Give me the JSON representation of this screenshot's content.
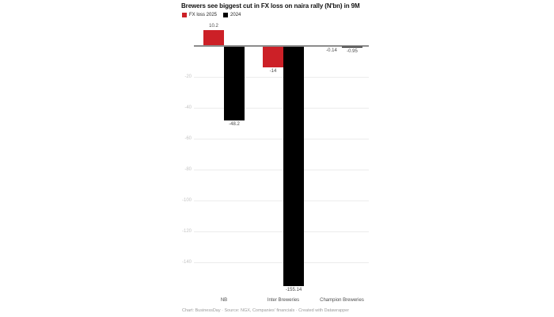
{
  "chart_data": {
    "type": "bar",
    "title": "Brewers see biggest cut in FX loss on naira rally (N'bn) in 9M",
    "categories": [
      "NB",
      "Inter Breweries",
      "Champion Breweries"
    ],
    "series": [
      {
        "name": "FX loss 2025",
        "color": "#cc2027",
        "values": [
          10.2,
          -14,
          -0.14
        ],
        "labels": [
          "10.2",
          "-14",
          "-0.14"
        ]
      },
      {
        "name": "2024",
        "color": "#000000",
        "values": [
          -48.2,
          -155.14,
          -0.95
        ],
        "labels": [
          "-48.2",
          "-155.14",
          "-0.95"
        ]
      }
    ],
    "yticks": [
      -20,
      -40,
      -60,
      -80,
      -100,
      -120,
      -140
    ],
    "ylim": [
      -160,
      14
    ],
    "grid": "horizontal",
    "legend_position": "top-left"
  },
  "footer": {
    "text": "Chart: BusinessDay · Source: NGX, Companies' financials · Created with Datawrapper"
  }
}
